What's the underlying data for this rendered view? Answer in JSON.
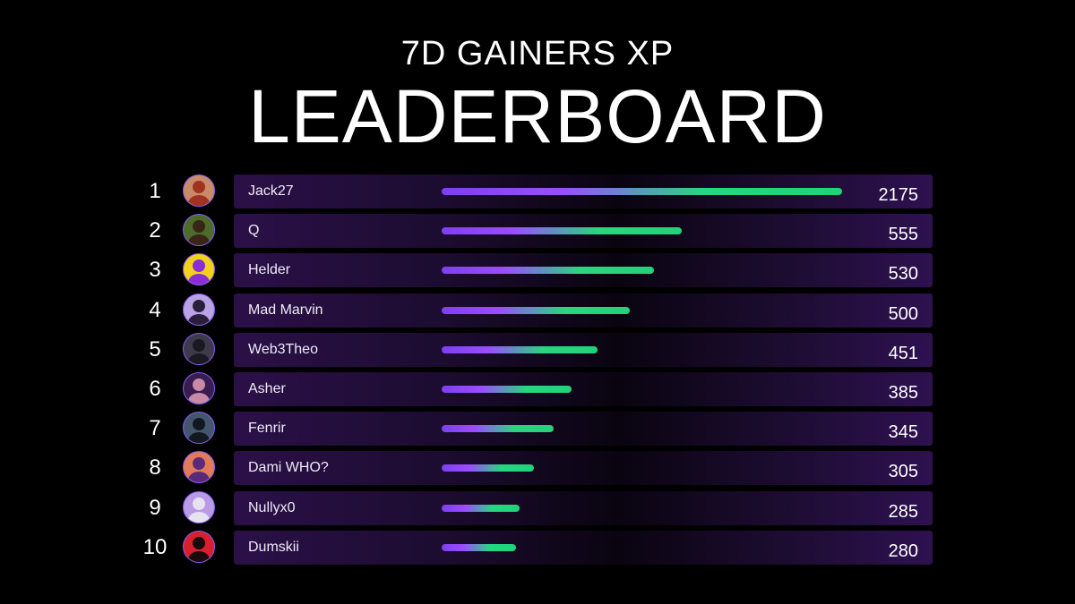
{
  "header": {
    "subtitle": "7D GAINERS XP",
    "title": "LEADERBOARD"
  },
  "colors": {
    "background": "#000000",
    "row_bg": "#2b1048",
    "bar_start": "#9b4dff",
    "bar_end": "#22d27a",
    "avatar_border": "#8b5cf6"
  },
  "chart_data": {
    "type": "bar",
    "orientation": "horizontal",
    "categories": [
      "Jack27",
      "Q",
      "Helder",
      "Mad Marvin",
      "Web3Theo",
      "Asher",
      "Fenrir",
      "Dami WHO?",
      "Nullyx0",
      "Dumskii"
    ],
    "ranks": [
      "1",
      "2",
      "3",
      "4",
      "5",
      "6",
      "7",
      "8",
      "9",
      "10"
    ],
    "values": [
      2175,
      555,
      530,
      500,
      451,
      385,
      345,
      305,
      285,
      280
    ],
    "value_labels": [
      "2175",
      "555",
      "530",
      "500",
      "451",
      "385",
      "345",
      "305",
      "285",
      "280"
    ],
    "bar_fill_fraction": [
      1.0,
      0.6,
      0.53,
      0.47,
      0.39,
      0.325,
      0.28,
      0.23,
      0.195,
      0.185
    ],
    "title": "LEADERBOARD",
    "subtitle": "7D GAINERS XP",
    "grid": false,
    "legend": "none"
  },
  "avatars": [
    {
      "icon": "red-hair-person-avatar-icon",
      "bg": "#c98a6a",
      "fg": "#a0321f"
    },
    {
      "icon": "bearded-person-avatar-icon",
      "bg": "#4d6b2a",
      "fg": "#3a2418"
    },
    {
      "icon": "astronaut-avatar-icon",
      "bg": "#f2d21b",
      "fg": "#8a2dd6"
    },
    {
      "icon": "hat-person-avatar-icon",
      "bg": "#b9a2e6",
      "fg": "#2a1f3a"
    },
    {
      "icon": "dark-figure-avatar-icon",
      "bg": "#3d3a4a",
      "fg": "#1a1822"
    },
    {
      "icon": "hairless-cat-avatar-icon",
      "bg": "#3a1d50",
      "fg": "#c98aa8"
    },
    {
      "icon": "black-cat-avatar-icon",
      "bg": "#44566e",
      "fg": "#121820"
    },
    {
      "icon": "girl-avatar-icon",
      "bg": "#e27a5a",
      "fg": "#5a2a7a"
    },
    {
      "icon": "robot-avatar-icon",
      "bg": "#b89ae6",
      "fg": "#e8e2f0"
    },
    {
      "icon": "red-mask-avatar-icon",
      "bg": "#d81f2e",
      "fg": "#1a0a0a"
    }
  ]
}
